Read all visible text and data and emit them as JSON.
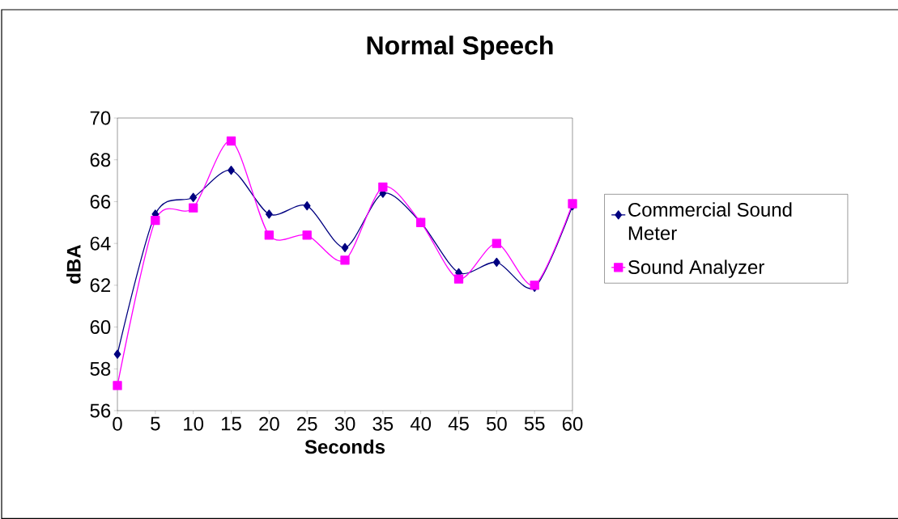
{
  "chart_data": {
    "type": "line",
    "title": "Normal Speech",
    "xlabel": "Seconds",
    "ylabel": "dBA",
    "x": [
      0,
      5,
      10,
      15,
      20,
      25,
      30,
      35,
      40,
      45,
      50,
      55,
      60
    ],
    "series": [
      {
        "name": "Commercial Sound Meter",
        "color": "#000080",
        "marker": "diamond",
        "values": [
          58.7,
          65.4,
          66.2,
          67.5,
          65.4,
          65.8,
          63.8,
          66.4,
          65.0,
          62.6,
          63.1,
          61.9,
          65.8
        ]
      },
      {
        "name": "Sound Analyzer",
        "color": "#ff00ff",
        "marker": "square",
        "values": [
          57.2,
          65.1,
          65.7,
          68.9,
          64.4,
          64.4,
          63.2,
          66.7,
          65.0,
          62.3,
          64.0,
          62.0,
          65.9
        ]
      }
    ],
    "xlim": [
      0,
      60
    ],
    "xticks": [
      0,
      5,
      10,
      15,
      20,
      25,
      30,
      35,
      40,
      45,
      50,
      55,
      60
    ],
    "ylim": [
      56,
      70
    ],
    "yticks": [
      56,
      58,
      60,
      62,
      64,
      66,
      68,
      70
    ],
    "grid": false,
    "legend": "right",
    "line_style": "solid"
  }
}
